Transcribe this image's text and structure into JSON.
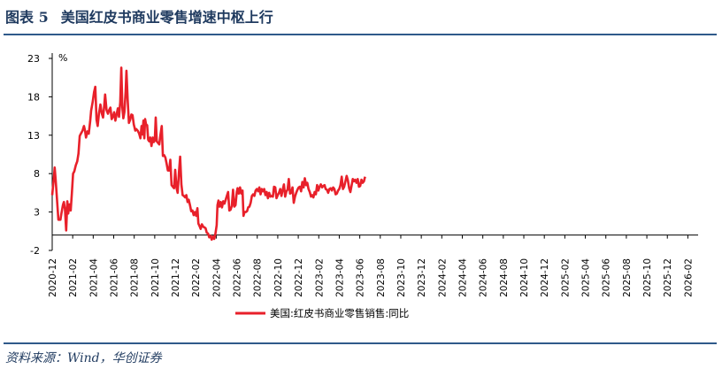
{
  "figure": {
    "label": "图表",
    "number": "5",
    "title": "美国红皮书商业零售增速中枢上行"
  },
  "source": "资料来源：Wind，华创证券",
  "chart_data": {
    "type": "line",
    "unit": "%",
    "ylim": [
      -2,
      23
    ],
    "yticks": [
      -2,
      3,
      8,
      13,
      18,
      23
    ],
    "xlabels": [
      "2020-12",
      "2021-02",
      "2021-04",
      "2021-06",
      "2021-08",
      "2021-10",
      "2021-12",
      "2022-02",
      "2022-04",
      "2022-06",
      "2022-08",
      "2022-10",
      "2022-12",
      "2023-02",
      "2023-04",
      "2023-06",
      "2023-08",
      "2023-10",
      "2023-12",
      "2024-02",
      "2024-04",
      "2024-06",
      "2024-08",
      "2024-10",
      "2024-12",
      "2025-02",
      "2025-04",
      "2025-06",
      "2025-08",
      "2025-10",
      "2025-12",
      "2026-02"
    ],
    "grid": false,
    "legend_position": "bottom",
    "series": [
      {
        "name": "美国:红皮书商业零售销售:同比",
        "color": "#e8202a",
        "points": [
          [
            0.0,
            5.2
          ],
          [
            0.08,
            7.5
          ],
          [
            0.12,
            8.8
          ],
          [
            0.17,
            7.2
          ],
          [
            0.25,
            4.0
          ],
          [
            0.3,
            2.0
          ],
          [
            0.4,
            2.0
          ],
          [
            0.45,
            2.8
          ],
          [
            0.52,
            3.9
          ],
          [
            0.57,
            4.3
          ],
          [
            0.62,
            3.4
          ],
          [
            0.68,
            0.6
          ],
          [
            0.74,
            4.4
          ],
          [
            0.78,
            2.8
          ],
          [
            0.84,
            4.0
          ],
          [
            0.9,
            3.2
          ],
          [
            0.96,
            5.4
          ],
          [
            1.02,
            8.0
          ],
          [
            1.08,
            8.3
          ],
          [
            1.15,
            9.1
          ],
          [
            1.22,
            9.6
          ],
          [
            1.28,
            10.6
          ],
          [
            1.34,
            12.9
          ],
          [
            1.4,
            13.2
          ],
          [
            1.48,
            13.6
          ],
          [
            1.55,
            14.2
          ],
          [
            1.6,
            13.6
          ],
          [
            1.65,
            12.7
          ],
          [
            1.72,
            13.5
          ],
          [
            1.78,
            13.2
          ],
          [
            1.85,
            14.8
          ],
          [
            1.9,
            16.2
          ],
          [
            1.97,
            17.3
          ],
          [
            2.04,
            18.6
          ],
          [
            2.1,
            19.3
          ],
          [
            2.16,
            15.0
          ],
          [
            2.22,
            14.2
          ],
          [
            2.28,
            15.8
          ],
          [
            2.35,
            17.0
          ],
          [
            2.42,
            15.8
          ],
          [
            2.48,
            15.3
          ],
          [
            2.53,
            16.6
          ],
          [
            2.58,
            18.3
          ],
          [
            2.65,
            16.3
          ],
          [
            2.72,
            15.8
          ],
          [
            2.78,
            16.3
          ],
          [
            2.84,
            16.6
          ],
          [
            2.9,
            15.1
          ],
          [
            2.96,
            15.4
          ],
          [
            3.02,
            16.0
          ],
          [
            3.08,
            14.9
          ],
          [
            3.14,
            15.7
          ],
          [
            3.2,
            16.5
          ],
          [
            3.26,
            15.4
          ],
          [
            3.32,
            17.3
          ],
          [
            3.37,
            21.8
          ],
          [
            3.42,
            16.6
          ],
          [
            3.47,
            15.2
          ],
          [
            3.52,
            16.0
          ],
          [
            3.58,
            18.7
          ],
          [
            3.62,
            21.4
          ],
          [
            3.68,
            17.6
          ],
          [
            3.74,
            14.6
          ],
          [
            3.8,
            15.0
          ],
          [
            3.86,
            15.7
          ],
          [
            3.92,
            15.6
          ],
          [
            3.98,
            14.4
          ],
          [
            4.05,
            13.6
          ],
          [
            4.1,
            13.8
          ],
          [
            4.17,
            13.6
          ],
          [
            4.24,
            13.2
          ],
          [
            4.3,
            12.6
          ],
          [
            4.36,
            14.2
          ],
          [
            4.4,
            13.1
          ],
          [
            4.45,
            14.9
          ],
          [
            4.49,
            12.6
          ],
          [
            4.53,
            15.1
          ],
          [
            4.58,
            14.4
          ],
          [
            4.63,
            14.3
          ],
          [
            4.68,
            12.4
          ],
          [
            4.73,
            12.2
          ],
          [
            4.78,
            12.7
          ],
          [
            4.84,
            11.6
          ],
          [
            4.9,
            12.7
          ],
          [
            4.95,
            12.1
          ],
          [
            5.0,
            12.3
          ],
          [
            5.05,
            15.3
          ],
          [
            5.1,
            12.2
          ],
          [
            5.16,
            12.0
          ],
          [
            5.22,
            11.8
          ],
          [
            5.28,
            13.1
          ],
          [
            5.34,
            14.2
          ],
          [
            5.4,
            10.3
          ],
          [
            5.46,
            10.4
          ],
          [
            5.52,
            10.1
          ],
          [
            5.58,
            9.3
          ],
          [
            5.64,
            8.4
          ],
          [
            5.7,
            8.4
          ],
          [
            5.76,
            9.8
          ],
          [
            5.82,
            6.5
          ],
          [
            5.88,
            6.3
          ],
          [
            5.94,
            6.1
          ],
          [
            6.0,
            8.5
          ],
          [
            6.06,
            6.2
          ],
          [
            6.12,
            5.5
          ],
          [
            6.18,
            8.1
          ],
          [
            6.24,
            10.2
          ],
          [
            6.3,
            6.6
          ],
          [
            6.36,
            5.2
          ],
          [
            6.42,
            5.1
          ],
          [
            6.48,
            4.9
          ],
          [
            6.54,
            5.2
          ],
          [
            6.6,
            4.3
          ],
          [
            6.66,
            4.6
          ],
          [
            6.72,
            3.9
          ],
          [
            6.78,
            3.1
          ],
          [
            6.84,
            3.2
          ],
          [
            6.9,
            2.6
          ],
          [
            6.96,
            3.0
          ],
          [
            7.02,
            2.5
          ],
          [
            7.08,
            3.5
          ],
          [
            7.13,
            1.5
          ],
          [
            7.18,
            1.2
          ],
          [
            7.24,
            0.8
          ],
          [
            7.3,
            1.4
          ],
          [
            7.36,
            1.1
          ],
          [
            7.42,
            1.0
          ],
          [
            7.48,
            0.9
          ],
          [
            7.54,
            0.3
          ],
          [
            7.6,
            0.2
          ],
          [
            7.66,
            -0.3
          ],
          [
            7.72,
            -0.1
          ],
          [
            7.78,
            -0.6
          ],
          [
            7.84,
            -0.2
          ],
          [
            7.9,
            -0.5
          ],
          [
            7.96,
            0.2
          ],
          [
            8.02,
            1.3
          ],
          [
            8.06,
            3.9
          ],
          [
            8.11,
            4.5
          ],
          [
            8.16,
            3.7
          ],
          [
            8.22,
            4.3
          ],
          [
            8.28,
            3.6
          ],
          [
            8.34,
            4.4
          ],
          [
            8.4,
            4.1
          ],
          [
            8.46,
            4.6
          ],
          [
            8.52,
            5.1
          ],
          [
            8.58,
            5.6
          ],
          [
            8.64,
            3.2
          ],
          [
            8.7,
            3.3
          ],
          [
            8.76,
            3.8
          ],
          [
            8.82,
            5.9
          ],
          [
            8.88,
            3.7
          ],
          [
            8.94,
            3.9
          ],
          [
            9.0,
            5.6
          ],
          [
            9.04,
            6.1
          ],
          [
            9.1,
            5.4
          ],
          [
            9.16,
            6.2
          ],
          [
            9.22,
            5.4
          ],
          [
            9.28,
            5.8
          ],
          [
            9.33,
            2.5
          ],
          [
            9.38,
            3.0
          ],
          [
            9.44,
            3.0
          ],
          [
            9.5,
            3.1
          ],
          [
            9.56,
            3.6
          ],
          [
            9.62,
            3.7
          ],
          [
            9.68,
            4.2
          ],
          [
            9.74,
            5.1
          ],
          [
            9.8,
            5.3
          ],
          [
            9.86,
            5.1
          ],
          [
            9.92,
            5.8
          ],
          [
            9.98,
            6.0
          ],
          [
            10.04,
            5.7
          ],
          [
            10.1,
            6.2
          ],
          [
            10.16,
            5.3
          ],
          [
            10.22,
            6.0
          ],
          [
            10.28,
            5.7
          ],
          [
            10.34,
            6.0
          ],
          [
            10.4,
            5.2
          ],
          [
            10.46,
            5.6
          ],
          [
            10.52,
            4.8
          ],
          [
            10.58,
            5.5
          ],
          [
            10.64,
            5.0
          ],
          [
            10.7,
            5.1
          ],
          [
            10.76,
            5.0
          ],
          [
            10.82,
            6.3
          ],
          [
            10.88,
            6.2
          ],
          [
            10.94,
            4.8
          ],
          [
            11.0,
            5.2
          ],
          [
            11.06,
            5.5
          ],
          [
            11.12,
            6.0
          ],
          [
            11.18,
            5.1
          ],
          [
            11.24,
            5.9
          ],
          [
            11.3,
            6.6
          ],
          [
            11.36,
            5.0
          ],
          [
            11.42,
            5.7
          ],
          [
            11.48,
            5.9
          ],
          [
            11.54,
            7.3
          ],
          [
            11.6,
            5.4
          ],
          [
            11.66,
            5.5
          ],
          [
            11.72,
            6.2
          ],
          [
            11.78,
            4.2
          ],
          [
            11.84,
            5.0
          ],
          [
            11.9,
            5.5
          ],
          [
            11.96,
            5.9
          ],
          [
            12.02,
            6.2
          ],
          [
            12.08,
            6.3
          ],
          [
            12.14,
            5.7
          ],
          [
            12.2,
            6.9
          ],
          [
            12.26,
            6.2
          ],
          [
            12.32,
            7.4
          ],
          [
            12.38,
            6.5
          ],
          [
            12.44,
            6.8
          ],
          [
            12.5,
            6.0
          ],
          [
            12.56,
            5.6
          ],
          [
            12.62,
            5.0
          ],
          [
            12.68,
            5.2
          ],
          [
            12.74,
            4.9
          ],
          [
            12.8,
            5.6
          ],
          [
            12.86,
            5.3
          ],
          [
            12.92,
            6.5
          ],
          [
            12.98,
            5.8
          ],
          [
            13.04,
            6.3
          ],
          [
            13.1,
            6.6
          ],
          [
            13.16,
            6.2
          ],
          [
            13.22,
            6.4
          ],
          [
            13.28,
            6.5
          ],
          [
            13.34,
            6.0
          ],
          [
            13.4,
            5.9
          ],
          [
            13.46,
            5.5
          ],
          [
            13.52,
            6.0
          ],
          [
            13.58,
            6.1
          ],
          [
            13.64,
            5.8
          ],
          [
            13.7,
            6.2
          ],
          [
            13.76,
            6.0
          ],
          [
            13.82,
            5.3
          ],
          [
            13.88,
            5.4
          ],
          [
            13.94,
            5.8
          ],
          [
            14.0,
            6.0
          ],
          [
            14.06,
            6.5
          ],
          [
            14.12,
            7.6
          ],
          [
            14.18,
            6.0
          ],
          [
            14.24,
            6.3
          ],
          [
            14.3,
            7.0
          ],
          [
            14.36,
            7.7
          ],
          [
            14.42,
            7.1
          ],
          [
            14.48,
            6.1
          ],
          [
            14.54,
            5.6
          ],
          [
            14.6,
            6.4
          ],
          [
            14.66,
            7.3
          ],
          [
            14.72,
            7.0
          ],
          [
            14.78,
            7.2
          ],
          [
            14.84,
            6.8
          ],
          [
            14.9,
            7.3
          ],
          [
            14.96,
            6.3
          ],
          [
            15.02,
            6.4
          ],
          [
            15.08,
            7.2
          ],
          [
            15.14,
            6.8
          ],
          [
            15.2,
            7.0
          ],
          [
            15.26,
            7.6
          ]
        ]
      }
    ]
  }
}
